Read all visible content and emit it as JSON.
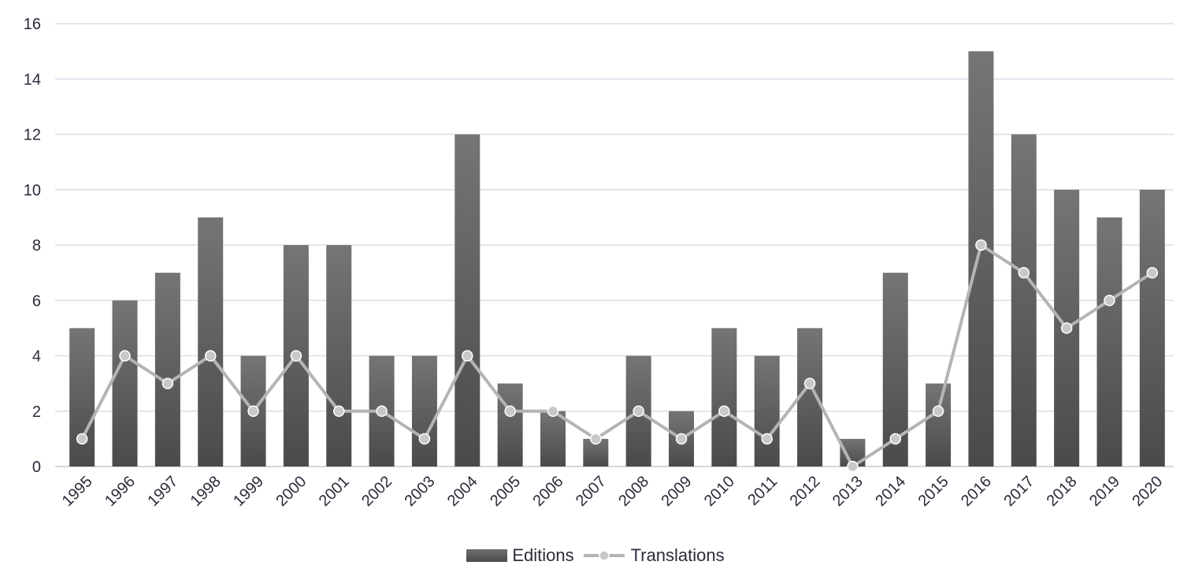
{
  "chart_data": {
    "type": "bar",
    "title": "",
    "xlabel": "",
    "ylabel": "",
    "ylim": [
      0,
      16
    ],
    "yticks": [
      0,
      2,
      4,
      6,
      8,
      10,
      12,
      14,
      16
    ],
    "grid": true,
    "legend_position": "bottom",
    "categories": [
      "1995",
      "1996",
      "1997",
      "1998",
      "1999",
      "2000",
      "2001",
      "2002",
      "2003",
      "2004",
      "2005",
      "2006",
      "2007",
      "2008",
      "2009",
      "2010",
      "2011",
      "2012",
      "2013",
      "2014",
      "2015",
      "2016",
      "2017",
      "2018",
      "2019",
      "2020"
    ],
    "series": [
      {
        "name": "Editions",
        "type": "bar",
        "color": "#5a5a5a",
        "values": [
          5,
          6,
          7,
          9,
          4,
          8,
          8,
          4,
          4,
          12,
          3,
          2,
          1,
          4,
          2,
          5,
          4,
          5,
          1,
          7,
          3,
          15,
          12,
          10,
          9,
          10
        ]
      },
      {
        "name": "Translations",
        "type": "line",
        "color": "#b4b4b4",
        "values": [
          1,
          4,
          3,
          4,
          2,
          4,
          2,
          2,
          1,
          4,
          2,
          2,
          1,
          2,
          1,
          2,
          1,
          3,
          0,
          1,
          2,
          8,
          7,
          5,
          6,
          7
        ]
      }
    ]
  }
}
